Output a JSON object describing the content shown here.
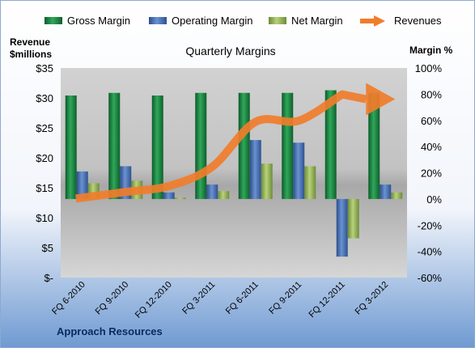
{
  "chart_data": {
    "type": "bar",
    "title": "Quarterly Margins",
    "footer": "Approach Resources",
    "left_axis": {
      "label_line1": "Revenue",
      "label_line2": "$millions",
      "ticks": [
        "$-",
        "$5",
        "$10",
        "$15",
        "$20",
        "$25",
        "$30",
        "$35"
      ],
      "range": [
        0,
        35
      ]
    },
    "right_axis": {
      "label": "Margin %",
      "ticks": [
        "-60%",
        "-40%",
        "-20%",
        "0%",
        "20%",
        "40%",
        "60%",
        "80%",
        "100%"
      ],
      "range": [
        -60,
        100
      ]
    },
    "categories": [
      "FQ 6-2010",
      "FQ 9-2010",
      "FQ 12-2010",
      "FQ 3-2011",
      "FQ 6-2011",
      "FQ 9-2011",
      "FQ 12-2011",
      "FQ 3-2012"
    ],
    "series": [
      {
        "name": "Gross Margin",
        "axis": "right",
        "color": "#1E8A45",
        "values": [
          79,
          81,
          79,
          81,
          81,
          81,
          83,
          81
        ]
      },
      {
        "name": "Operating Margin",
        "axis": "right",
        "color": "#4A72B8",
        "values": [
          21,
          25,
          5,
          11,
          45,
          43,
          -44,
          11
        ]
      },
      {
        "name": "Net Margin",
        "axis": "right",
        "color": "#9BBB59",
        "values": [
          12,
          14,
          1,
          6,
          27,
          25,
          -30,
          5
        ]
      }
    ],
    "revenues": {
      "name": "Revenues",
      "axis": "left",
      "color": "#F07D2B",
      "values": [
        13.2,
        14.3,
        15.3,
        18.5,
        26.0,
        26.2,
        30.6,
        29.8
      ]
    },
    "grid": false,
    "legend_position": "top"
  }
}
